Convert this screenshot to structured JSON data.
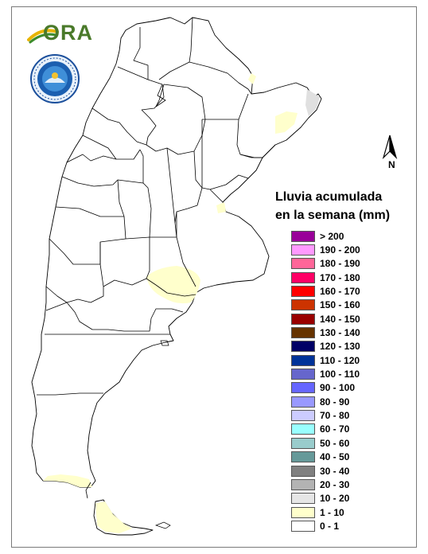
{
  "logo": {
    "text": "ORA",
    "icon": "ora-logo-swoosh"
  },
  "seal": {
    "icon": "servicio-meteorologico-nacional-seal"
  },
  "north_arrow": {
    "label": "N",
    "icon": "north-arrow-icon"
  },
  "legend": {
    "title_line1": "Lluvia acumulada",
    "title_line2": "en la semana (mm)",
    "items": [
      {
        "label": "> 200",
        "color": "#990099"
      },
      {
        "label": "190 - 200",
        "color": "#ff99ff"
      },
      {
        "label": "180 - 190",
        "color": "#ff6699"
      },
      {
        "label": "170 - 180",
        "color": "#ff0066"
      },
      {
        "label": "160 - 170",
        "color": "#ff0000"
      },
      {
        "label": "150 - 160",
        "color": "#cc3300"
      },
      {
        "label": "140 - 150",
        "color": "#990000"
      },
      {
        "label": "130 - 140",
        "color": "#663300"
      },
      {
        "label": "120 - 130",
        "color": "#000066"
      },
      {
        "label": "110 - 120",
        "color": "#003399"
      },
      {
        "label": "100 - 110",
        "color": "#6666cc"
      },
      {
        "label": "90 - 100",
        "color": "#6666ff"
      },
      {
        "label": "80 - 90",
        "color": "#9999ff"
      },
      {
        "label": "70 - 80",
        "color": "#ccccff"
      },
      {
        "label": "60 - 70",
        "color": "#99ffff"
      },
      {
        "label": "50 - 60",
        "color": "#99cccc"
      },
      {
        "label": "40 - 50",
        "color": "#669999"
      },
      {
        "label": "30 - 40",
        "color": "#808080"
      },
      {
        "label": "20 - 30",
        "color": "#b3b3b3"
      },
      {
        "label": "10 - 20",
        "color": "#e6e6e6"
      },
      {
        "label": "1 - 10",
        "color": "#ffffcc"
      },
      {
        "label": "0 - 1",
        "color": "#ffffff"
      }
    ]
  },
  "map": {
    "region": "Argentina",
    "rain_classes_present": [
      "0 - 1",
      "1 - 10",
      "10 - 20"
    ]
  }
}
